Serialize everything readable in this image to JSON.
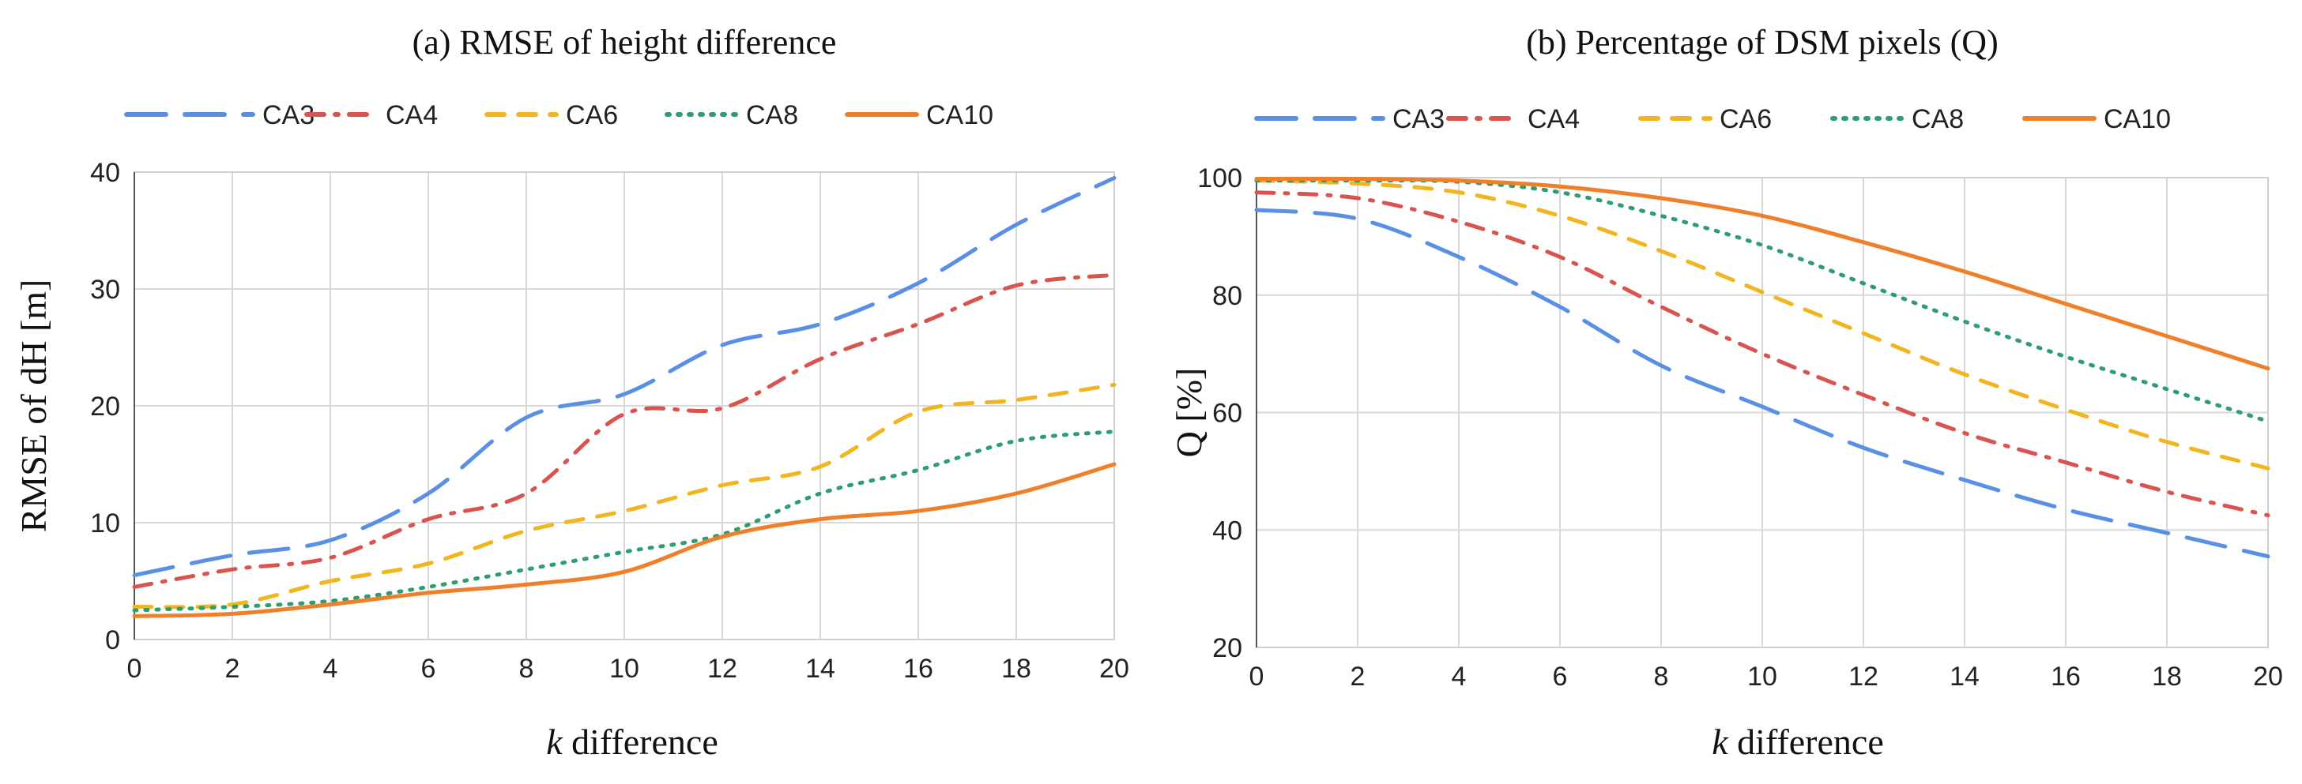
{
  "chart_data": [
    {
      "type": "line",
      "title": "(a) RMSE of height difference",
      "xlabel_italic": "k",
      "xlabel_rest": " difference",
      "ylabel": "RMSE of dH  [m]",
      "xlim": [
        0,
        20
      ],
      "ylim": [
        0,
        40
      ],
      "xticks": [
        "0",
        "2",
        "4",
        "6",
        "8",
        "10",
        "12",
        "14",
        "16",
        "18",
        "20"
      ],
      "yticks": [
        "0",
        "10",
        "20",
        "30",
        "40"
      ],
      "grid": true,
      "legend_position": "top",
      "x": [
        0,
        2,
        4,
        6,
        8,
        10,
        12,
        14,
        16,
        18,
        20
      ],
      "series": [
        {
          "name": "CA3",
          "color": "#5a8fe6",
          "dash": "long-dash",
          "values": [
            5.5,
            7.2,
            8.5,
            12.5,
            19.0,
            21.0,
            25.2,
            27.0,
            30.5,
            35.5,
            39.5
          ]
        },
        {
          "name": "CA4",
          "color": "#d9534f",
          "dash": "dash-dot",
          "values": [
            4.5,
            6.0,
            7.0,
            10.3,
            12.5,
            19.3,
            19.8,
            24.0,
            27.0,
            30.3,
            31.2
          ]
        },
        {
          "name": "CA6",
          "color": "#f2b51f",
          "dash": "dash",
          "values": [
            2.8,
            3.0,
            5.0,
            6.5,
            9.3,
            11.0,
            13.2,
            14.8,
            19.5,
            20.5,
            21.8
          ]
        },
        {
          "name": "CA8",
          "color": "#2e9e6e",
          "dash": "dot",
          "values": [
            2.5,
            2.8,
            3.3,
            4.5,
            6.0,
            7.5,
            9.0,
            12.5,
            14.5,
            17.0,
            17.8
          ]
        },
        {
          "name": "CA10",
          "color": "#f07f2a",
          "dash": "solid",
          "values": [
            2.0,
            2.2,
            3.0,
            4.0,
            4.7,
            5.8,
            8.8,
            10.3,
            11.0,
            12.5,
            15.0
          ]
        }
      ]
    },
    {
      "type": "line",
      "title": "(b) Percentage of DSM pixels (Q)",
      "xlabel_italic": "k",
      "xlabel_rest": " difference",
      "ylabel": "Q [%]",
      "xlim": [
        0,
        20
      ],
      "ylim": [
        20,
        100
      ],
      "xticks": [
        "0",
        "2",
        "4",
        "6",
        "8",
        "10",
        "12",
        "14",
        "16",
        "18",
        "20"
      ],
      "yticks": [
        "20",
        "40",
        "60",
        "80",
        "100"
      ],
      "grid": true,
      "legend_position": "top",
      "x": [
        0,
        2,
        4,
        6,
        8,
        10,
        12,
        14,
        16,
        18,
        20
      ],
      "series": [
        {
          "name": "CA3",
          "color": "#5a8fe6",
          "dash": "long-dash",
          "values": [
            94.5,
            93.0,
            86.5,
            78.0,
            68.0,
            61.0,
            54.0,
            48.5,
            43.5,
            39.5,
            35.5
          ]
        },
        {
          "name": "CA4",
          "color": "#d9534f",
          "dash": "dash-dot",
          "values": [
            97.5,
            96.5,
            92.5,
            86.5,
            78.0,
            70.0,
            63.0,
            56.5,
            51.5,
            46.5,
            42.5
          ]
        },
        {
          "name": "CA6",
          "color": "#f2b51f",
          "dash": "dash",
          "values": [
            99.5,
            99.0,
            97.5,
            93.5,
            87.5,
            80.5,
            73.5,
            66.5,
            60.5,
            55.0,
            50.5
          ]
        },
        {
          "name": "CA8",
          "color": "#2e9e6e",
          "dash": "dot",
          "values": [
            99.5,
            99.5,
            99.3,
            97.5,
            93.5,
            88.5,
            82.0,
            75.5,
            69.5,
            64.0,
            58.5
          ]
        },
        {
          "name": "CA10",
          "color": "#f07f2a",
          "dash": "solid",
          "values": [
            99.8,
            99.8,
            99.5,
            98.5,
            96.5,
            93.5,
            89.0,
            84.0,
            78.5,
            73.0,
            67.5
          ]
        }
      ]
    }
  ]
}
